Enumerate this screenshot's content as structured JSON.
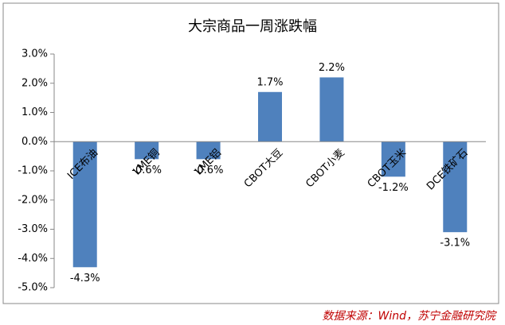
{
  "chart_data": {
    "type": "bar",
    "title": "大宗商品一周涨跌幅",
    "categories": [
      "ICE布油",
      "LME铜",
      "LME铝",
      "CBOT大豆",
      "CBOT小麦",
      "CBOT玉米",
      "DCE铁矿石"
    ],
    "values": [
      -4.3,
      -0.6,
      -0.6,
      1.7,
      2.2,
      -1.2,
      -3.1
    ],
    "value_labels": [
      "-4.3%",
      "-0.6%",
      "-0.6%",
      "1.7%",
      "2.2%",
      "-1.2%",
      "-3.1%"
    ],
    "color": "#4f81bd",
    "ylim": [
      -5,
      3
    ],
    "yticks": [
      {
        "value": 3,
        "label": "3.0%"
      },
      {
        "value": 2,
        "label": "2.0%"
      },
      {
        "value": 1,
        "label": "1.0%"
      },
      {
        "value": 0,
        "label": "0.0%"
      },
      {
        "value": -1,
        "label": "-1.0%"
      },
      {
        "value": -2,
        "label": "-2.0%"
      },
      {
        "value": -3,
        "label": "-3.0%"
      },
      {
        "value": -4,
        "label": "-4.0%"
      },
      {
        "value": -5,
        "label": "-5.0%"
      }
    ],
    "grid": false,
    "source": "数据来源：Wind，苏宁金融研究院"
  }
}
